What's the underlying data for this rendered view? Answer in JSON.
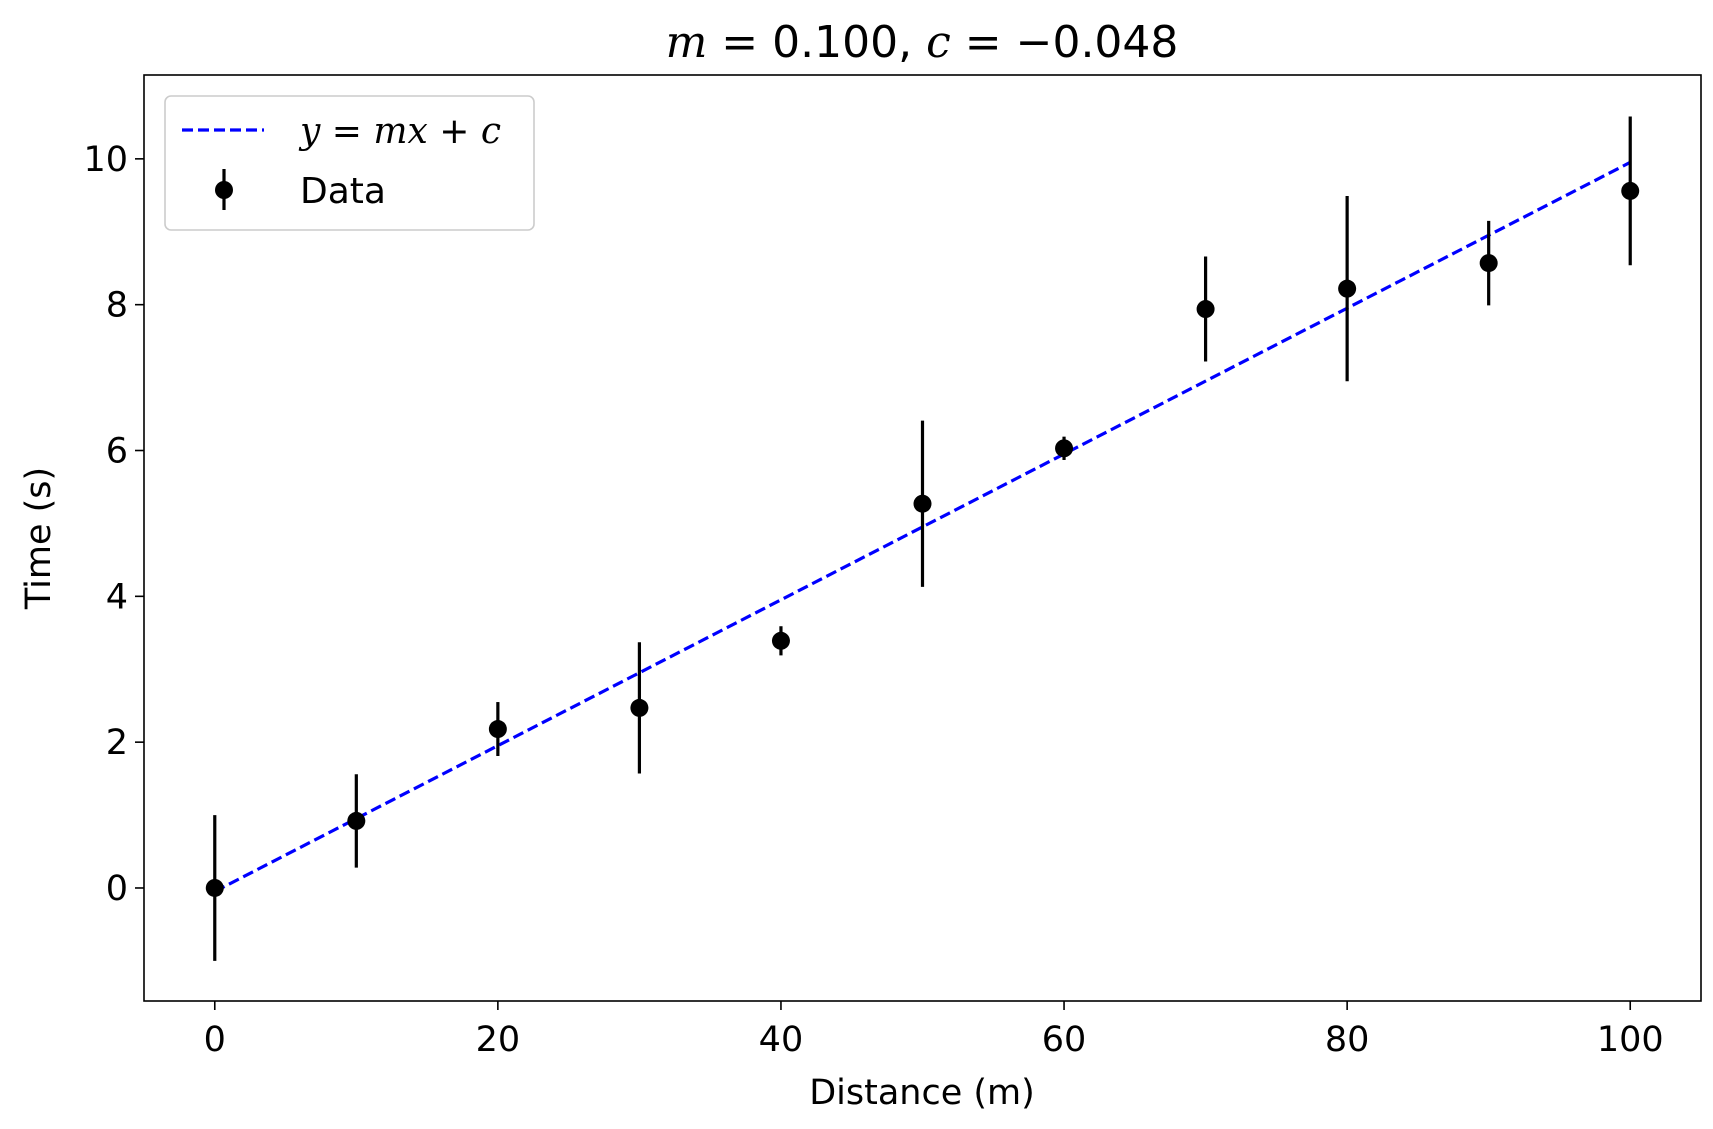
{
  "chart_data": {
    "type": "scatter",
    "title_parts": {
      "m_var": "m",
      "eq1": " = ",
      "m_val": "0.100, ",
      "c_var": "c",
      "eq2": " = ",
      "c_val": "−0.048"
    },
    "xlabel": "Distance (m)",
    "ylabel": "Time (s)",
    "xlim": [
      -5,
      105
    ],
    "ylim": [
      -1.55,
      11.15
    ],
    "xticks": [
      0,
      20,
      40,
      60,
      80,
      100
    ],
    "yticks": [
      0,
      2,
      4,
      6,
      8,
      10
    ],
    "grid": false,
    "legend_position": "top-left",
    "series": [
      {
        "name": "Data",
        "kind": "errorbar",
        "color": "#000000",
        "x": [
          0,
          10,
          20,
          30,
          40,
          50,
          60,
          70,
          80,
          90,
          100
        ],
        "y": [
          0.0,
          0.92,
          2.18,
          2.47,
          3.39,
          5.27,
          6.03,
          7.94,
          8.22,
          8.57,
          9.56
        ],
        "yerr": [
          1.0,
          0.64,
          0.37,
          0.9,
          0.2,
          1.14,
          0.16,
          0.72,
          1.27,
          0.58,
          1.02
        ]
      },
      {
        "name_parts": {
          "y": "y",
          "eq": " = ",
          "m": "m",
          "x": "x",
          "plus": " + ",
          "c": "c"
        },
        "kind": "line",
        "style": "dashed",
        "color": "#0000ff",
        "slope": 0.1,
        "intercept": -0.048,
        "x_range": [
          0,
          100
        ]
      }
    ]
  }
}
